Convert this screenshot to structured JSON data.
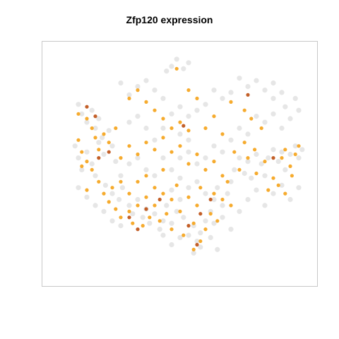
{
  "chart_data": {
    "type": "scatter",
    "title": "Zfp120 expression",
    "xlabel": "",
    "ylabel": "",
    "grid": false,
    "legend": "none",
    "axes_visible": false,
    "colors": {
      "background_cells": "#dcdcdc",
      "expression_low": "#f5a623",
      "expression_high": "#c0561c",
      "frame": "#c8c8c8"
    },
    "series": [
      {
        "role": "background",
        "points": [
          [
            -0.6,
            0.5
          ],
          [
            -0.58,
            0.42
          ],
          [
            -0.55,
            0.35
          ],
          [
            -0.52,
            0.45
          ],
          [
            -0.5,
            0.3
          ],
          [
            -0.48,
            0.38
          ],
          [
            -0.46,
            0.22
          ],
          [
            -0.62,
            0.15
          ],
          [
            -0.6,
            0.05
          ],
          [
            -0.58,
            -0.05
          ],
          [
            -0.55,
            0.1
          ],
          [
            -0.52,
            0.0
          ],
          [
            -0.5,
            -0.1
          ],
          [
            -0.48,
            0.18
          ],
          [
            -0.45,
            0.08
          ],
          [
            -0.42,
            0.28
          ],
          [
            -0.4,
            0.15
          ],
          [
            -0.38,
            0.02
          ],
          [
            -0.44,
            -0.18
          ],
          [
            -0.4,
            -0.25
          ],
          [
            -0.36,
            -0.3
          ],
          [
            -0.34,
            -0.2
          ],
          [
            -0.3,
            -0.35
          ],
          [
            -0.28,
            -0.42
          ],
          [
            -0.25,
            -0.3
          ],
          [
            -0.22,
            -0.45
          ],
          [
            -0.2,
            -0.38
          ],
          [
            -0.18,
            -0.5
          ],
          [
            -0.15,
            -0.42
          ],
          [
            -0.12,
            -0.55
          ],
          [
            -0.1,
            -0.48
          ],
          [
            -0.08,
            -0.35
          ],
          [
            -0.05,
            -0.5
          ],
          [
            -0.02,
            -0.4
          ],
          [
            0.0,
            -0.3
          ],
          [
            0.02,
            -0.45
          ],
          [
            0.05,
            -0.6
          ],
          [
            0.08,
            -0.52
          ],
          [
            0.1,
            -0.65
          ],
          [
            0.12,
            -0.58
          ],
          [
            0.15,
            -0.48
          ],
          [
            0.18,
            -0.4
          ],
          [
            0.2,
            -0.3
          ],
          [
            0.22,
            -0.2
          ],
          [
            0.25,
            -0.35
          ],
          [
            0.28,
            -0.25
          ],
          [
            0.3,
            -0.15
          ],
          [
            0.32,
            -0.05
          ],
          [
            0.35,
            0.05
          ],
          [
            0.38,
            -0.08
          ],
          [
            0.4,
            0.02
          ],
          [
            0.42,
            -0.12
          ],
          [
            0.45,
            0.08
          ],
          [
            0.48,
            0.0
          ],
          [
            0.5,
            -0.1
          ],
          [
            0.52,
            0.05
          ],
          [
            0.55,
            0.12
          ],
          [
            0.58,
            0.02
          ],
          [
            0.6,
            0.1
          ],
          [
            0.62,
            -0.05
          ],
          [
            0.65,
            0.08
          ],
          [
            0.68,
            0.15
          ],
          [
            0.7,
            0.05
          ],
          [
            0.72,
            0.12
          ],
          [
            0.6,
            0.6
          ],
          [
            0.55,
            0.68
          ],
          [
            0.5,
            0.62
          ],
          [
            0.45,
            0.7
          ],
          [
            0.4,
            0.65
          ],
          [
            0.35,
            0.72
          ],
          [
            0.3,
            0.6
          ],
          [
            0.25,
            0.55
          ],
          [
            0.2,
            0.62
          ],
          [
            0.15,
            0.5
          ],
          [
            0.1,
            0.45
          ],
          [
            0.05,
            0.4
          ],
          [
            0.0,
            0.48
          ],
          [
            -0.05,
            0.42
          ],
          [
            -0.1,
            0.55
          ],
          [
            -0.15,
            0.62
          ],
          [
            -0.2,
            0.7
          ],
          [
            -0.25,
            0.65
          ],
          [
            -0.3,
            0.58
          ],
          [
            -0.35,
            0.68
          ],
          [
            -0.05,
            0.82
          ],
          [
            -0.02,
            0.88
          ],
          [
            0.02,
            0.8
          ],
          [
            0.05,
            0.85
          ],
          [
            -0.08,
            0.78
          ],
          [
            0.45,
            0.4
          ],
          [
            0.5,
            0.35
          ],
          [
            0.55,
            0.42
          ],
          [
            0.6,
            0.3
          ],
          [
            0.65,
            0.38
          ],
          [
            0.7,
            0.45
          ],
          [
            0.4,
            0.25
          ],
          [
            0.35,
            0.3
          ],
          [
            0.3,
            0.2
          ],
          [
            0.25,
            0.1
          ],
          [
            0.2,
            0.15
          ],
          [
            0.15,
            0.05
          ],
          [
            0.1,
            0.0
          ],
          [
            0.05,
            0.1
          ],
          [
            0.0,
            0.05
          ],
          [
            -0.05,
            -0.05
          ],
          [
            -0.1,
            0.05
          ],
          [
            -0.15,
            -0.1
          ],
          [
            -0.2,
            -0.05
          ],
          [
            -0.25,
            0.05
          ],
          [
            -0.3,
            0.0
          ],
          [
            -0.35,
            -0.1
          ],
          [
            0.1,
            -0.15
          ],
          [
            0.05,
            -0.2
          ],
          [
            0.0,
            -0.12
          ],
          [
            -0.05,
            -0.22
          ],
          [
            0.15,
            -0.25
          ],
          [
            0.2,
            -0.5
          ],
          [
            0.25,
            -0.45
          ],
          [
            0.3,
            -0.55
          ],
          [
            0.35,
            -0.4
          ],
          [
            0.4,
            -0.3
          ],
          [
            0.45,
            -0.22
          ],
          [
            0.5,
            -0.35
          ],
          [
            0.55,
            -0.25
          ],
          [
            0.6,
            -0.18
          ],
          [
            0.65,
            -0.3
          ],
          [
            0.7,
            -0.2
          ],
          [
            -0.1,
            -0.6
          ],
          [
            -0.05,
            -0.68
          ],
          [
            0.0,
            -0.62
          ],
          [
            0.08,
            -0.75
          ],
          [
            0.12,
            -0.7
          ],
          [
            0.18,
            -0.62
          ],
          [
            0.22,
            -0.72
          ],
          [
            -0.3,
            0.35
          ],
          [
            -0.25,
            0.4
          ],
          [
            -0.2,
            0.3
          ],
          [
            -0.15,
            0.2
          ],
          [
            -0.1,
            0.3
          ],
          [
            0.0,
            0.25
          ],
          [
            0.05,
            0.2
          ],
          [
            0.55,
            0.55
          ],
          [
            0.62,
            0.48
          ],
          [
            0.68,
            0.55
          ],
          [
            -0.6,
            -0.2
          ],
          [
            -0.55,
            -0.28
          ],
          [
            -0.5,
            -0.35
          ],
          [
            -0.45,
            -0.4
          ],
          [
            -0.4,
            -0.48
          ],
          [
            -0.35,
            -0.52
          ]
        ]
      },
      {
        "role": "expressing",
        "points": [
          [
            -0.6,
            0.42
          ],
          [
            -0.55,
            0.38
          ],
          [
            -0.52,
            0.3
          ],
          [
            -0.5,
            0.22
          ],
          [
            -0.48,
            0.12
          ],
          [
            -0.45,
            0.25
          ],
          [
            -0.58,
            0.1
          ],
          [
            -0.55,
            0.02
          ],
          [
            -0.52,
            -0.05
          ],
          [
            -0.48,
            -0.15
          ],
          [
            -0.45,
            -0.25
          ],
          [
            -0.42,
            -0.32
          ],
          [
            -0.4,
            -0.2
          ],
          [
            -0.38,
            -0.38
          ],
          [
            -0.35,
            -0.45
          ],
          [
            -0.3,
            -0.4
          ],
          [
            -0.28,
            -0.5
          ],
          [
            -0.25,
            -0.35
          ],
          [
            -0.22,
            -0.52
          ],
          [
            -0.2,
            -0.28
          ],
          [
            -0.18,
            -0.45
          ],
          [
            -0.15,
            -0.35
          ],
          [
            -0.12,
            -0.48
          ],
          [
            -0.1,
            -0.25
          ],
          [
            -0.08,
            -0.42
          ],
          [
            -0.05,
            -0.3
          ],
          [
            -0.02,
            -0.18
          ],
          [
            0.0,
            -0.4
          ],
          [
            0.05,
            -0.28
          ],
          [
            0.08,
            -0.5
          ],
          [
            0.1,
            -0.35
          ],
          [
            0.12,
            -0.2
          ],
          [
            0.15,
            -0.55
          ],
          [
            0.18,
            -0.42
          ],
          [
            0.2,
            -0.25
          ],
          [
            0.22,
            -0.48
          ],
          [
            0.25,
            -0.3
          ],
          [
            0.28,
            -0.15
          ],
          [
            0.3,
            -0.35
          ],
          [
            0.35,
            -0.05
          ],
          [
            0.4,
            0.05
          ],
          [
            0.45,
            -0.08
          ],
          [
            0.5,
            0.02
          ],
          [
            0.55,
            -0.12
          ],
          [
            0.6,
            0.05
          ],
          [
            0.62,
            0.12
          ],
          [
            0.65,
            -0.02
          ],
          [
            0.68,
            0.08
          ],
          [
            0.7,
            0.15
          ],
          [
            0.52,
            -0.22
          ],
          [
            0.58,
            -0.18
          ],
          [
            0.62,
            -0.25
          ],
          [
            0.66,
            -0.1
          ],
          [
            -0.3,
            0.55
          ],
          [
            -0.25,
            0.62
          ],
          [
            -0.2,
            0.52
          ],
          [
            -0.15,
            0.45
          ],
          [
            -0.1,
            0.38
          ],
          [
            -0.05,
            0.3
          ],
          [
            0.0,
            0.35
          ],
          [
            0.05,
            0.28
          ],
          [
            -0.1,
            0.22
          ],
          [
            -0.15,
            0.12
          ],
          [
            -0.2,
            0.18
          ],
          [
            -0.25,
            0.08
          ],
          [
            -0.3,
            0.15
          ],
          [
            -0.35,
            0.05
          ],
          [
            -0.05,
            0.1
          ],
          [
            0.0,
            0.15
          ],
          [
            0.05,
            0.0
          ],
          [
            0.1,
            0.08
          ],
          [
            0.15,
            -0.05
          ],
          [
            0.2,
            0.02
          ],
          [
            0.25,
            -0.1
          ],
          [
            -0.35,
            -0.15
          ],
          [
            -0.3,
            -0.25
          ],
          [
            -0.25,
            -0.15
          ],
          [
            -0.2,
            -0.1
          ],
          [
            -0.15,
            -0.2
          ],
          [
            -0.1,
            -0.05
          ],
          [
            -0.02,
            0.8
          ],
          [
            0.05,
            0.62
          ],
          [
            0.1,
            0.55
          ],
          [
            0.3,
            0.52
          ],
          [
            0.38,
            0.45
          ],
          [
            0.42,
            0.38
          ],
          [
            0.48,
            0.3
          ],
          [
            0.2,
            0.4
          ],
          [
            0.15,
            0.3
          ],
          [
            0.25,
            0.25
          ],
          [
            0.08,
            -0.72
          ],
          [
            0.12,
            -0.65
          ],
          [
            0.02,
            -0.6
          ],
          [
            -0.05,
            -0.55
          ],
          [
            -0.38,
            0.3
          ],
          [
            -0.42,
            0.18
          ],
          [
            -0.6,
            0.2
          ],
          [
            -0.58,
            -0.02
          ],
          [
            -0.55,
            -0.22
          ],
          [
            0.32,
            0.1
          ],
          [
            0.38,
            0.18
          ],
          [
            0.44,
            0.12
          ]
        ]
      },
      {
        "role": "high-expressing",
        "points": [
          [
            -0.55,
            0.48
          ],
          [
            -0.5,
            0.4
          ],
          [
            -0.42,
            0.1
          ],
          [
            -0.3,
            -0.45
          ],
          [
            -0.12,
            -0.3
          ],
          [
            0.05,
            -0.52
          ],
          [
            0.12,
            -0.42
          ],
          [
            0.18,
            -0.3
          ],
          [
            0.4,
            0.58
          ],
          [
            -0.2,
            -0.38
          ],
          [
            0.02,
            0.32
          ],
          [
            0.55,
            0.05
          ],
          [
            -0.48,
            0.05
          ],
          [
            0.1,
            -0.68
          ],
          [
            -0.25,
            -0.55
          ]
        ]
      }
    ]
  }
}
